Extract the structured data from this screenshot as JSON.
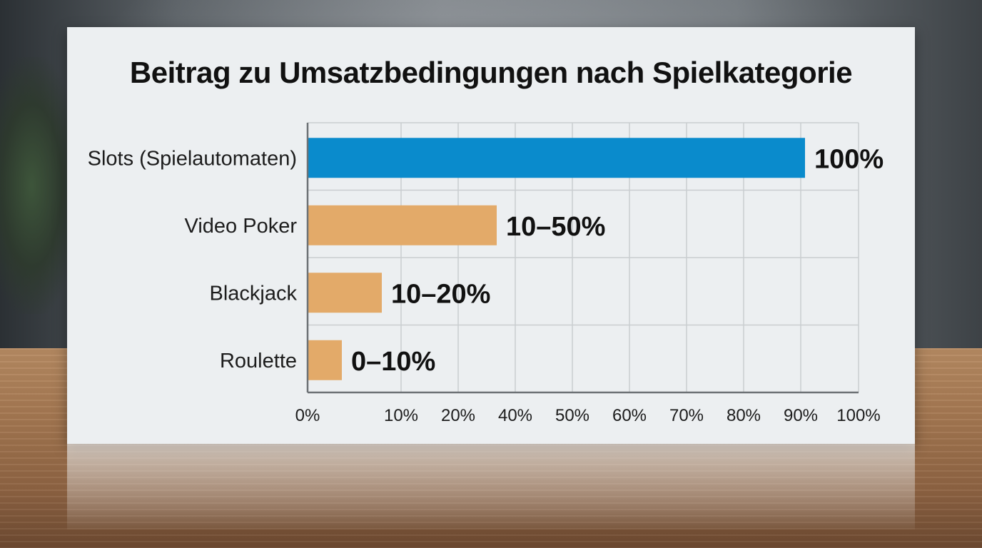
{
  "chart_data": {
    "type": "bar",
    "orientation": "horizontal",
    "title": "Beitrag zu Umsatzbedingungen nach Spielkategorie",
    "xlabel": "",
    "ylabel": "",
    "grid": true,
    "categories": [
      "Slots (Spielautomaten)",
      "Video Poker",
      "Blackjack",
      "Roulette"
    ],
    "values": [
      100,
      50,
      20,
      10
    ],
    "value_labels": [
      "100%",
      "10–50%",
      "10–20%",
      "0–10%"
    ],
    "colors": [
      "#0a8bcc",
      "#e3aa69",
      "#e3aa69",
      "#e3aa69"
    ],
    "x_ticks": [
      "0%",
      "10%",
      "20%",
      "40%",
      "50%",
      "60%",
      "70%",
      "80%",
      "90%",
      "100%"
    ]
  }
}
